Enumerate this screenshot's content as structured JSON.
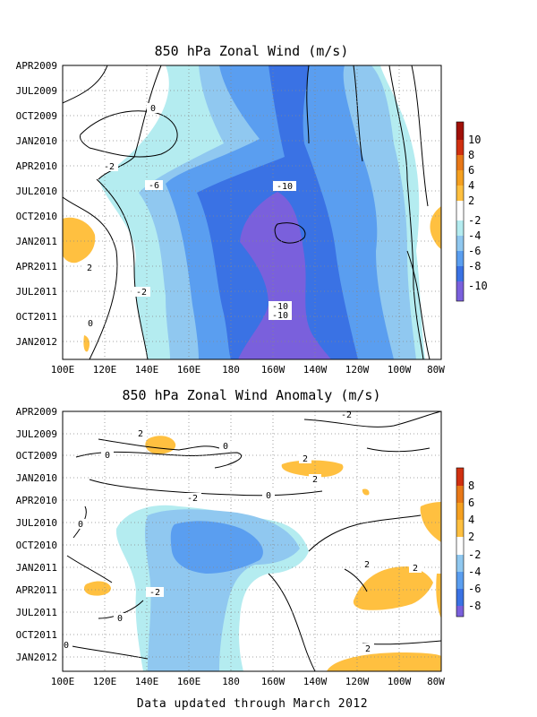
{
  "footer": "Data updated through March 2012",
  "colors": {
    "pos2": "#ffc040",
    "pos4": "#f5a020",
    "pos6": "#e87818",
    "pos8": "#d03010",
    "pos10": "#a01008",
    "neg2": "#b4ecf0",
    "neg4": "#90c8f0",
    "neg6": "#5a9ef0",
    "neg8": "#3a72e4",
    "neg10": "#7a60dc"
  },
  "chart_data": [
    {
      "type": "heatmap",
      "title": "850 hPa Zonal Wind (m/s)",
      "x_ticks": [
        "100E",
        "120E",
        "140E",
        "160E",
        "180",
        "160W",
        "140W",
        "120W",
        "100W",
        "80W"
      ],
      "y_ticks": [
        "APR2009",
        "JUL2009",
        "OCT2009",
        "JAN2010",
        "APR2010",
        "JUL2010",
        "OCT2010",
        "JAN2011",
        "APR2011",
        "JUL2011",
        "OCT2011",
        "JAN2012"
      ],
      "colorbar_labels": [
        "10",
        "8",
        "6",
        "4",
        "2",
        "-2",
        "-4",
        "-6",
        "-8",
        "-10"
      ],
      "contour_labels": [
        "-2",
        "0",
        "-6",
        "-10",
        "2",
        "-2",
        "0",
        "-10",
        "-10"
      ],
      "grid": true
    },
    {
      "type": "heatmap",
      "title": "850 hPa Zonal Wind Anomaly (m/s)",
      "x_ticks": [
        "100E",
        "120E",
        "140E",
        "160E",
        "180",
        "160W",
        "140W",
        "120W",
        "100W",
        "80W"
      ],
      "y_ticks": [
        "APR2009",
        "JUL2009",
        "OCT2009",
        "JAN2010",
        "APR2010",
        "JUL2010",
        "OCT2010",
        "JAN2011",
        "APR2011",
        "JUL2011",
        "OCT2011",
        "JAN2012"
      ],
      "colorbar_labels": [
        "8",
        "6",
        "4",
        "2",
        "-2",
        "-4",
        "-6",
        "-8"
      ],
      "contour_labels": [
        "2",
        "0",
        "0",
        "2",
        "2",
        "-2",
        "0",
        "0",
        "2",
        "2",
        "-2",
        "0",
        "0",
        "-2",
        "2"
      ],
      "grid": true
    }
  ]
}
